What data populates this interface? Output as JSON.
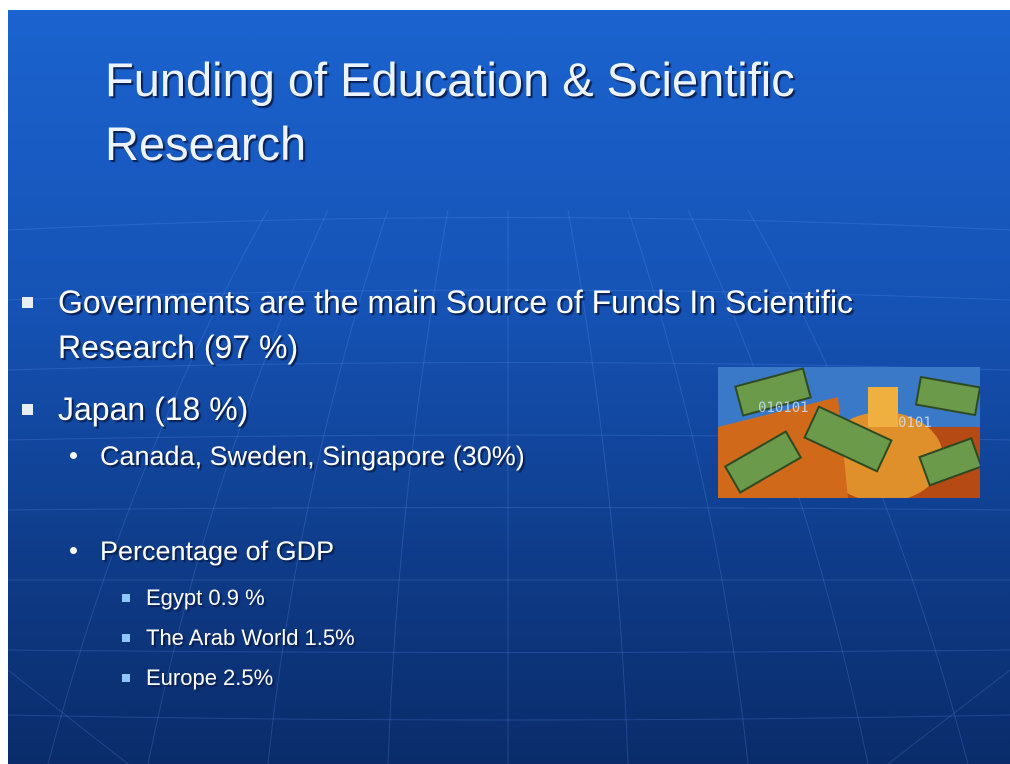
{
  "title": "Funding of Education & Scientific Research",
  "items": [
    {
      "level": 1,
      "text": "Governments are the main Source of Funds In Scientific Research (97 %)"
    },
    {
      "level": 1,
      "text": "Japan (18 %)"
    },
    {
      "level": 2,
      "text": "Canada, Sweden, Singapore (30%)"
    },
    {
      "level": 2,
      "text": "Percentage of GDP"
    },
    {
      "level": 3,
      "text": "Egypt 0.9 %"
    },
    {
      "level": 3,
      "text": "The Arab World 1.5%"
    },
    {
      "level": 3,
      "text": "Europe 2.5%"
    }
  ]
}
